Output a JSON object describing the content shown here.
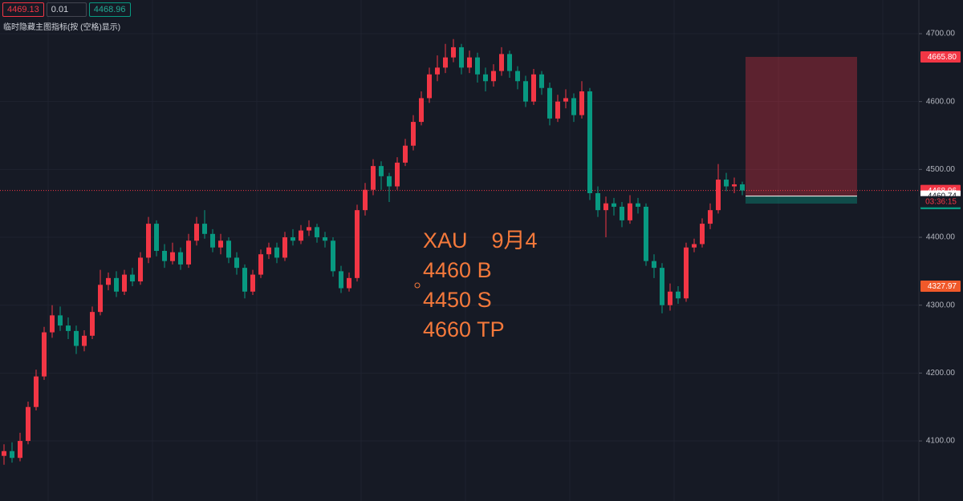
{
  "toolbar": {
    "bid": "4469.13",
    "spread": "0.01",
    "ask": "4468.96",
    "hint": "临时隐藏主图指标(按 (空格)显示)"
  },
  "chart_data": {
    "type": "candlestick",
    "open": [
      4078,
      4085,
      4075,
      4100,
      4150,
      4195,
      4260,
      4285,
      4270,
      4262,
      4240,
      4255,
      4290,
      4330,
      4340,
      4320,
      4345,
      4335,
      4370,
      4420,
      4380,
      4365,
      4378,
      4360,
      4395,
      4420,
      4405,
      4385,
      4395,
      4370,
      4355,
      4320,
      4345,
      4375,
      4385,
      4370,
      4400,
      4395,
      4410,
      4415,
      4400,
      4395,
      4350,
      4325,
      4340,
      4440,
      4470,
      4505,
      4490,
      4475,
      4510,
      4535,
      4570,
      4605,
      4640,
      4650,
      4665,
      4680,
      4650,
      4665,
      4640,
      4630,
      4645,
      4670,
      4645,
      4630,
      4600,
      4640,
      4620,
      4575,
      4600,
      4605,
      4580,
      4615,
      4465,
      4440,
      4450,
      4445,
      4425,
      4450,
      4445,
      4365,
      4355,
      4300,
      4320,
      4310,
      4385,
      4390,
      4420,
      4440,
      4485,
      4475,
      4478
    ],
    "high": [
      4095,
      4098,
      4112,
      4158,
      4205,
      4268,
      4300,
      4298,
      4282,
      4270,
      4263,
      4298,
      4352,
      4348,
      4350,
      4352,
      4355,
      4378,
      4430,
      4425,
      4390,
      4392,
      4385,
      4405,
      4430,
      4440,
      4412,
      4405,
      4400,
      4378,
      4360,
      4352,
      4382,
      4392,
      4392,
      4408,
      4412,
      4418,
      4425,
      4420,
      4408,
      4400,
      4358,
      4348,
      4448,
      4480,
      4515,
      4512,
      4495,
      4518,
      4545,
      4580,
      4615,
      4650,
      4668,
      4685,
      4692,
      4685,
      4675,
      4672,
      4650,
      4655,
      4680,
      4675,
      4652,
      4638,
      4648,
      4645,
      4628,
      4610,
      4618,
      4612,
      4630,
      4620,
      4475,
      4460,
      4458,
      4452,
      4462,
      4458,
      4450,
      4375,
      4362,
      4332,
      4328,
      4392,
      4398,
      4428,
      4450,
      4508,
      4495,
      4488,
      4482
    ],
    "low": [
      4065,
      4068,
      4070,
      4095,
      4145,
      4190,
      4252,
      4262,
      4250,
      4228,
      4232,
      4250,
      4285,
      4322,
      4312,
      4315,
      4328,
      4330,
      4362,
      4372,
      4355,
      4360,
      4352,
      4355,
      4388,
      4398,
      4378,
      4375,
      4362,
      4345,
      4310,
      4315,
      4340,
      4368,
      4362,
      4365,
      4388,
      4390,
      4402,
      4392,
      4385,
      4342,
      4318,
      4320,
      4335,
      4432,
      4462,
      4470,
      4452,
      4470,
      4505,
      4528,
      4565,
      4598,
      4630,
      4642,
      4658,
      4640,
      4642,
      4628,
      4615,
      4622,
      4638,
      4635,
      4618,
      4592,
      4595,
      4610,
      4565,
      4570,
      4590,
      4570,
      4575,
      4455,
      4430,
      4400,
      4432,
      4415,
      4420,
      4435,
      4358,
      4340,
      4288,
      4292,
      4302,
      4305,
      4378,
      4385,
      4412,
      4435,
      4468,
      4465,
      4462
    ],
    "close": [
      4085,
      4075,
      4100,
      4150,
      4195,
      4260,
      4285,
      4270,
      4262,
      4240,
      4255,
      4290,
      4330,
      4340,
      4320,
      4345,
      4335,
      4370,
      4420,
      4380,
      4365,
      4378,
      4360,
      4395,
      4420,
      4405,
      4385,
      4395,
      4370,
      4355,
      4320,
      4345,
      4375,
      4385,
      4370,
      4400,
      4395,
      4410,
      4415,
      4400,
      4395,
      4350,
      4325,
      4340,
      4440,
      4470,
      4505,
      4490,
      4475,
      4510,
      4535,
      4570,
      4605,
      4640,
      4650,
      4665,
      4680,
      4650,
      4665,
      4640,
      4630,
      4645,
      4670,
      4645,
      4630,
      4600,
      4640,
      4620,
      4575,
      4600,
      4605,
      4580,
      4615,
      4465,
      4440,
      4450,
      4445,
      4425,
      4450,
      4445,
      4365,
      4355,
      4300,
      4320,
      4310,
      4385,
      4390,
      4420,
      4440,
      4485,
      4475,
      4478,
      4469
    ],
    "up_color": "#f23645",
    "down_color": "#089981",
    "ylim": [
      4011.5,
      4749.6
    ],
    "yticks": [
      {
        "value": 4100,
        "label": "4100.00"
      },
      {
        "value": 4200,
        "label": "4200.00"
      },
      {
        "value": 4300,
        "label": "4300.00"
      },
      {
        "value": 4400,
        "label": "4400.00"
      },
      {
        "value": 4500,
        "label": "4500.00"
      },
      {
        "value": 4600,
        "label": "4600.00"
      },
      {
        "value": 4700,
        "label": "4700.00"
      }
    ],
    "grid": true,
    "price_tags": [
      {
        "value": 4665.8,
        "label": "4665.80",
        "color": "#f23645"
      },
      {
        "value": 4468.96,
        "label": "4468.96",
        "color": "#f23645"
      },
      {
        "value": 4460.74,
        "label": "4460.74",
        "color": "#ffffff"
      },
      {
        "value": 4449.64,
        "label": "4449.64",
        "color": "#089981"
      },
      {
        "value": 4327.97,
        "label": "4327.97",
        "color": "#f0592a"
      }
    ],
    "countdown": "03:36:15",
    "annotation": [
      "XAU    9月4",
      "4460 B",
      "4450 S",
      "4660 TP"
    ],
    "annotation_color": "#f5793b"
  }
}
